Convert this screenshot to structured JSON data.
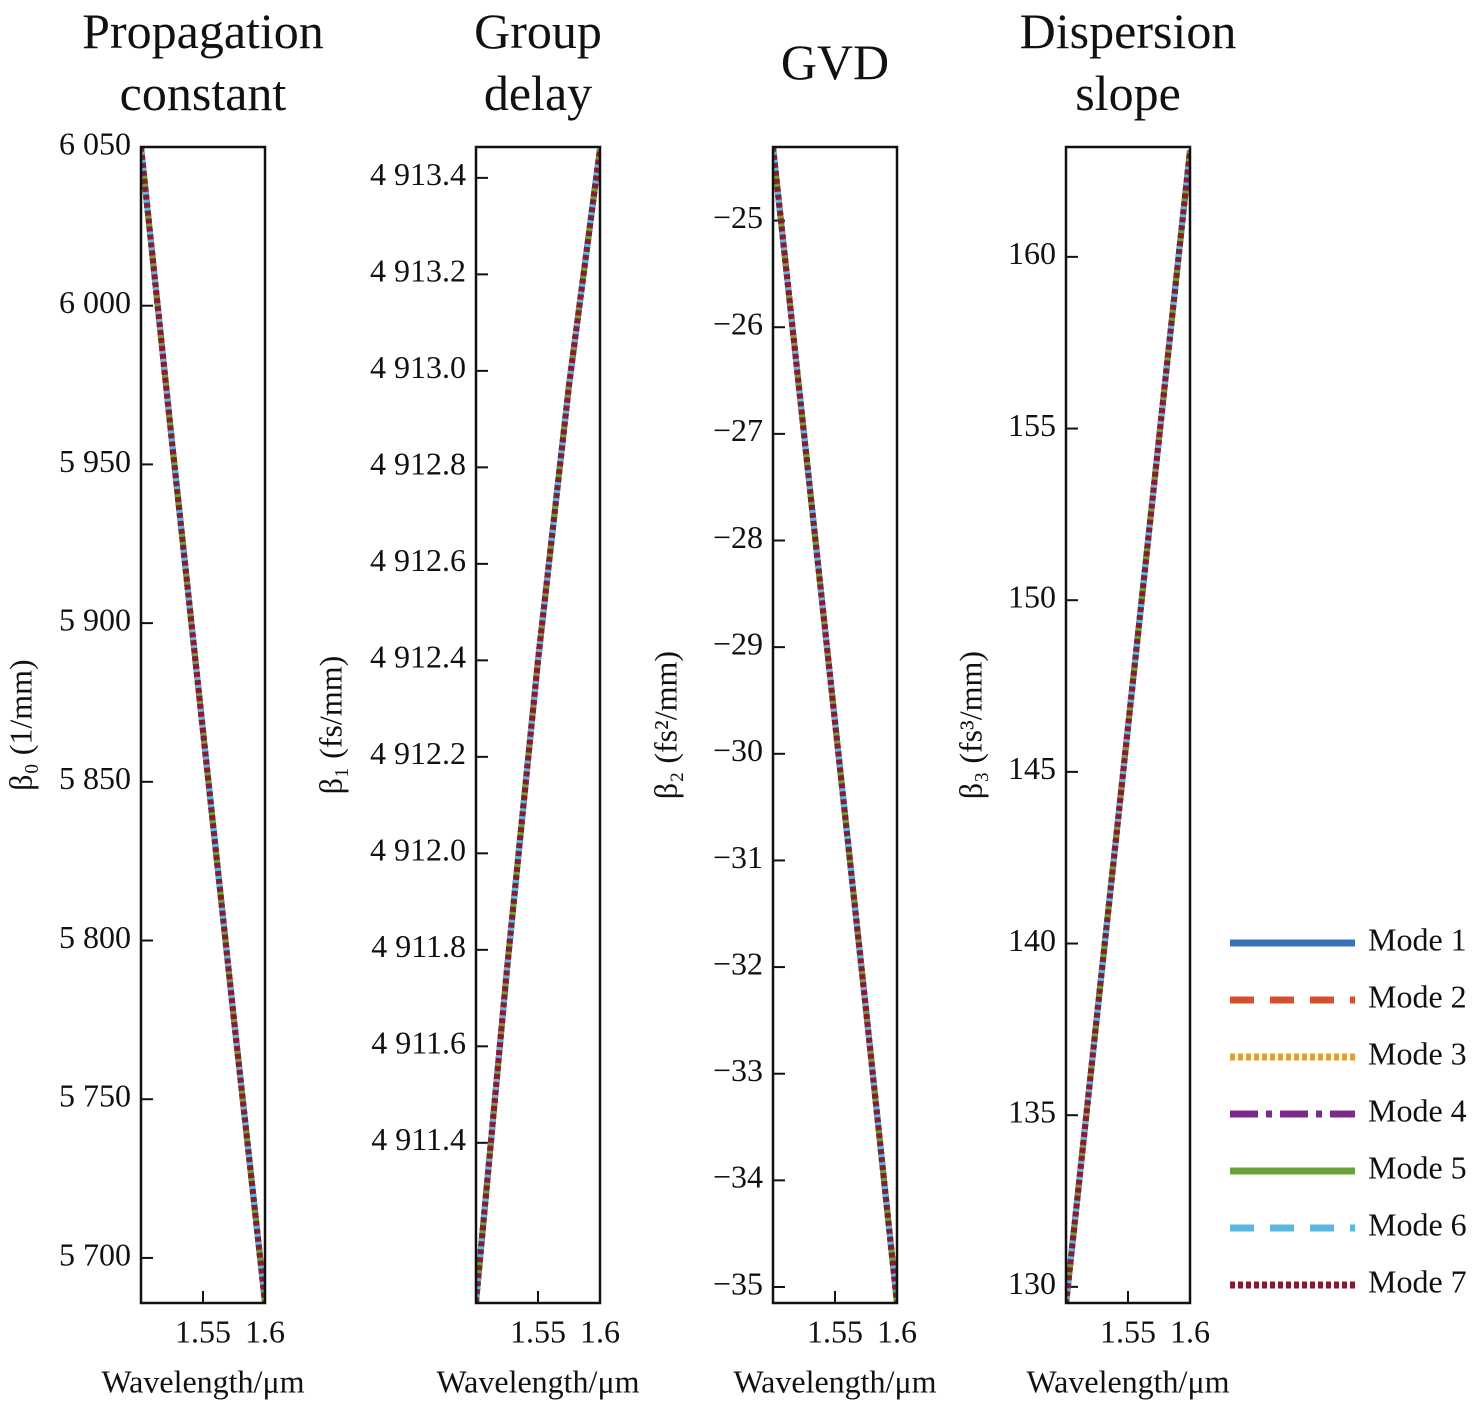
{
  "chart_data": [
    {
      "type": "line",
      "title": "Propagation\nconstant",
      "xlabel": "Wavelength/μm",
      "ylabel": "β₀ (1/mm)",
      "x": [
        1.5,
        1.525,
        1.55,
        1.575,
        1.6
      ],
      "xlim": [
        1.5,
        1.6
      ],
      "xticks": [
        1.55,
        1.6
      ],
      "ylim": [
        5685.8,
        6050
      ],
      "yticks": [
        {
          "value": 5700,
          "label": "5 700"
        },
        {
          "value": 5750,
          "label": "5 750"
        },
        {
          "value": 5800,
          "label": "5 800"
        },
        {
          "value": 5850,
          "label": "5 850"
        },
        {
          "value": 5900,
          "label": "5 900"
        },
        {
          "value": 5950,
          "label": "5 950"
        },
        {
          "value": 6000,
          "label": "6 000"
        },
        {
          "value": 6050,
          "label": "6 050"
        }
      ],
      "series": [
        {
          "name": "Mode 1",
          "color": "#3a70b8",
          "dash": "solid",
          "values": [
            6050,
            5957,
            5866,
            5775,
            5686
          ]
        },
        {
          "name": "Mode 2",
          "color": "#d4502a",
          "dash": "dashed",
          "values": [
            6050,
            5957,
            5866,
            5775,
            5686
          ]
        },
        {
          "name": "Mode 3",
          "color": "#e0a030",
          "dash": "dotted",
          "values": [
            6050,
            5957,
            5866,
            5775,
            5686
          ]
        },
        {
          "name": "Mode 4",
          "color": "#7a2a8a",
          "dash": "dashdot",
          "values": [
            6050,
            5957,
            5866,
            5775,
            5686
          ]
        },
        {
          "name": "Mode 5",
          "color": "#6aa038",
          "dash": "solid",
          "values": [
            6050,
            5957,
            5866,
            5775,
            5686
          ]
        },
        {
          "name": "Mode 6",
          "color": "#5ab8e0",
          "dash": "dashed",
          "values": [
            6050,
            5957,
            5866,
            5775,
            5686
          ]
        },
        {
          "name": "Mode 7",
          "color": "#8a1a30",
          "dash": "dotted",
          "values": [
            6050,
            5957,
            5866,
            5775,
            5686
          ]
        }
      ]
    },
    {
      "type": "line",
      "title": "Group\ndelay",
      "xlabel": "Wavelength/μm",
      "ylabel": "β₁ (fs/mm)",
      "x": [
        1.5,
        1.525,
        1.55,
        1.575,
        1.6
      ],
      "xlim": [
        1.5,
        1.6
      ],
      "xticks": [
        1.55,
        1.6
      ],
      "ylim": [
        4911.068,
        4913.464
      ],
      "yticks": [
        {
          "value": 4911.4,
          "label": "4 911.4"
        },
        {
          "value": 4911.6,
          "label": "4 911.6"
        },
        {
          "value": 4911.8,
          "label": "4 911.8"
        },
        {
          "value": 4912.0,
          "label": "4 912.0"
        },
        {
          "value": 4912.2,
          "label": "4 912.2"
        },
        {
          "value": 4912.4,
          "label": "4 912.4"
        },
        {
          "value": 4912.6,
          "label": "4 912.6"
        },
        {
          "value": 4912.8,
          "label": "4 912.8"
        },
        {
          "value": 4913.0,
          "label": "4 913.0"
        },
        {
          "value": 4913.2,
          "label": "4 913.2"
        },
        {
          "value": 4913.4,
          "label": "4 913.4"
        }
      ],
      "series": [
        {
          "name": "Mode 1",
          "color": "#3a70b8",
          "dash": "solid",
          "values": [
            4911.07,
            4911.76,
            4912.4,
            4912.97,
            4913.46
          ]
        },
        {
          "name": "Mode 2",
          "color": "#d4502a",
          "dash": "dashed",
          "values": [
            4911.07,
            4911.76,
            4912.4,
            4912.97,
            4913.46
          ]
        },
        {
          "name": "Mode 3",
          "color": "#e0a030",
          "dash": "dotted",
          "values": [
            4911.07,
            4911.76,
            4912.4,
            4912.97,
            4913.46
          ]
        },
        {
          "name": "Mode 4",
          "color": "#7a2a8a",
          "dash": "dashdot",
          "values": [
            4911.07,
            4911.76,
            4912.4,
            4912.97,
            4913.46
          ]
        },
        {
          "name": "Mode 5",
          "color": "#6aa038",
          "dash": "solid",
          "values": [
            4911.07,
            4911.76,
            4912.4,
            4912.97,
            4913.46
          ]
        },
        {
          "name": "Mode 6",
          "color": "#5ab8e0",
          "dash": "dashed",
          "values": [
            4911.07,
            4911.76,
            4912.4,
            4912.97,
            4913.46
          ]
        },
        {
          "name": "Mode 7",
          "color": "#8a1a30",
          "dash": "dotted",
          "values": [
            4911.07,
            4911.76,
            4912.4,
            4912.97,
            4913.46
          ]
        }
      ]
    },
    {
      "type": "line",
      "title": "GVD",
      "xlabel": "Wavelength/μm",
      "ylabel": "β₂ (fs²/mm)",
      "x": [
        1.5,
        1.525,
        1.55,
        1.575,
        1.6
      ],
      "xlim": [
        1.5,
        1.6
      ],
      "xticks": [
        1.55,
        1.6
      ],
      "ylim": [
        -35.15,
        -24.31
      ],
      "yticks": [
        {
          "value": -35,
          "label": "−35"
        },
        {
          "value": -34,
          "label": "−34"
        },
        {
          "value": -33,
          "label": "−33"
        },
        {
          "value": -32,
          "label": "−32"
        },
        {
          "value": -31,
          "label": "−31"
        },
        {
          "value": -30,
          "label": "−30"
        },
        {
          "value": -29,
          "label": "−29"
        },
        {
          "value": -28,
          "label": "−28"
        },
        {
          "value": -27,
          "label": "−27"
        },
        {
          "value": -26,
          "label": "−26"
        },
        {
          "value": -25,
          "label": "−25"
        }
      ],
      "series": [
        {
          "name": "Mode 1",
          "color": "#3a70b8",
          "dash": "solid",
          "values": [
            -24.31,
            -27.0,
            -29.7,
            -32.4,
            -35.15
          ]
        },
        {
          "name": "Mode 2",
          "color": "#d4502a",
          "dash": "dashed",
          "values": [
            -24.31,
            -27.0,
            -29.7,
            -32.4,
            -35.15
          ]
        },
        {
          "name": "Mode 3",
          "color": "#e0a030",
          "dash": "dotted",
          "values": [
            -24.31,
            -27.0,
            -29.7,
            -32.4,
            -35.15
          ]
        },
        {
          "name": "Mode 4",
          "color": "#7a2a8a",
          "dash": "dashdot",
          "values": [
            -24.31,
            -27.0,
            -29.7,
            -32.4,
            -35.15
          ]
        },
        {
          "name": "Mode 5",
          "color": "#6aa038",
          "dash": "solid",
          "values": [
            -24.31,
            -27.0,
            -29.7,
            -32.4,
            -35.15
          ]
        },
        {
          "name": "Mode 6",
          "color": "#5ab8e0",
          "dash": "dashed",
          "values": [
            -24.31,
            -27.0,
            -29.7,
            -32.4,
            -35.15
          ]
        },
        {
          "name": "Mode 7",
          "color": "#8a1a30",
          "dash": "dotted",
          "values": [
            -24.31,
            -27.0,
            -29.7,
            -32.4,
            -35.15
          ]
        }
      ]
    },
    {
      "type": "line",
      "title": "Dispersion\nslope",
      "xlabel": "Wavelength/μm",
      "ylabel": "β₃ (fs³/mm)",
      "x": [
        1.5,
        1.525,
        1.55,
        1.575,
        1.6
      ],
      "xlim": [
        1.5,
        1.6
      ],
      "xticks": [
        1.55,
        1.6
      ],
      "ylim": [
        129.53,
        163.2
      ],
      "yticks": [
        130,
        135,
        140,
        145,
        150,
        155,
        160
      ],
      "legend": "outside right",
      "series": [
        {
          "name": "Mode 1",
          "color": "#3a70b8",
          "dash": "solid",
          "values": [
            129.5,
            137.9,
            146.3,
            154.7,
            163.1
          ]
        },
        {
          "name": "Mode 2",
          "color": "#d4502a",
          "dash": "dashed",
          "values": [
            129.5,
            137.9,
            146.3,
            154.7,
            163.1
          ]
        },
        {
          "name": "Mode 3",
          "color": "#e0a030",
          "dash": "dotted",
          "values": [
            129.5,
            137.9,
            146.3,
            154.7,
            163.1
          ]
        },
        {
          "name": "Mode 4",
          "color": "#7a2a8a",
          "dash": "dashdot",
          "values": [
            129.5,
            137.9,
            146.3,
            154.7,
            163.1
          ]
        },
        {
          "name": "Mode 5",
          "color": "#6aa038",
          "dash": "solid",
          "values": [
            129.5,
            137.9,
            146.3,
            154.7,
            163.1
          ]
        },
        {
          "name": "Mode 6",
          "color": "#5ab8e0",
          "dash": "dashed",
          "values": [
            129.5,
            137.9,
            146.3,
            154.7,
            163.1
          ]
        },
        {
          "name": "Mode 7",
          "color": "#8a1a30",
          "dash": "dotted",
          "values": [
            129.5,
            137.9,
            146.3,
            154.7,
            163.1
          ]
        }
      ]
    }
  ]
}
